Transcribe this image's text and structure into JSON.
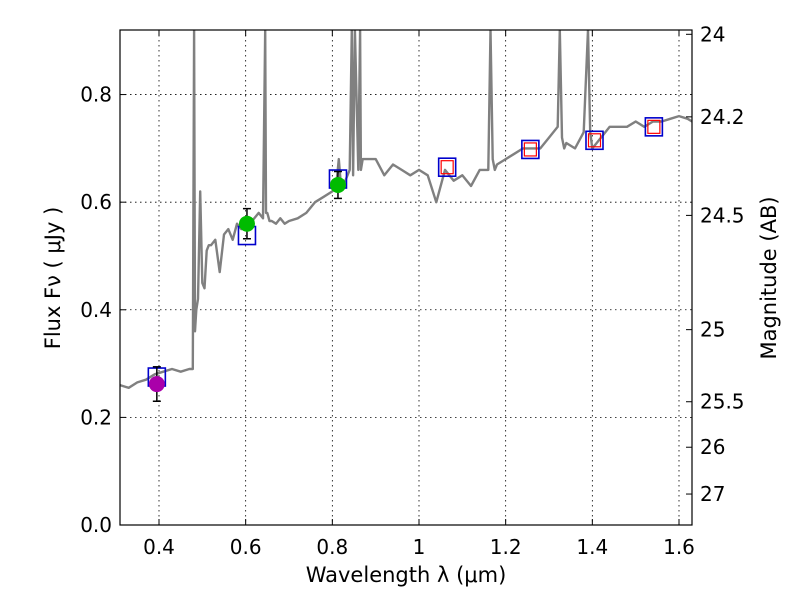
{
  "chart_data": {
    "type": "line",
    "xlabel": "Wavelength  λ (μm)",
    "ylabel": "Flux  Fν  ( μJy )",
    "y2label": "Magnitude (AB)",
    "xlim": [
      0.31,
      1.63
    ],
    "ylim": [
      0.0,
      0.92
    ],
    "x_ticks": [
      0.4,
      0.6,
      0.8,
      1.0,
      1.2,
      1.4,
      1.6
    ],
    "x_tick_labels": [
      "0.4",
      "0.6",
      "0.8",
      "1",
      "1.2",
      "1.4",
      "1.6"
    ],
    "y_ticks": [
      0.0,
      0.2,
      0.4,
      0.6,
      0.8
    ],
    "y_tick_labels": [
      "0.0",
      "0.2",
      "0.4",
      "0.6",
      "0.8"
    ],
    "y2_ticks": [
      {
        "label": "24",
        "mag": 24.0
      },
      {
        "label": "24.2",
        "mag": 24.2
      },
      {
        "label": "24.5",
        "mag": 24.5
      },
      {
        "label": "25",
        "mag": 25.0
      },
      {
        "label": "25.5",
        "mag": 25.5
      },
      {
        "label": "26",
        "mag": 26.0
      },
      {
        "label": "27",
        "mag": 27.0
      }
    ],
    "grid": true,
    "colors": {
      "spectrum": "#808080",
      "model_box": "#0000cc",
      "model_box_inner": "#ff0000",
      "point_violet": "#aa00aa",
      "point_green": "#00bb00",
      "errorbar": "#000000"
    },
    "series": [
      {
        "kind": "spectrum",
        "x": [
          0.31,
          0.33,
          0.35,
          0.37,
          0.39,
          0.41,
          0.43,
          0.45,
          0.47,
          0.478,
          0.481,
          0.483,
          0.486,
          0.49,
          0.495,
          0.5,
          0.505,
          0.51,
          0.515,
          0.52,
          0.53,
          0.54,
          0.55,
          0.56,
          0.57,
          0.58,
          0.59,
          0.6,
          0.61,
          0.62,
          0.63,
          0.64,
          0.645,
          0.647,
          0.65,
          0.655,
          0.66,
          0.67,
          0.68,
          0.69,
          0.7,
          0.72,
          0.74,
          0.76,
          0.78,
          0.8,
          0.81,
          0.815,
          0.82,
          0.83,
          0.84,
          0.845,
          0.848,
          0.852,
          0.86,
          0.864,
          0.866,
          0.87,
          0.88,
          0.9,
          0.92,
          0.94,
          0.96,
          0.98,
          1.0,
          1.02,
          1.04,
          1.06,
          1.08,
          1.1,
          1.12,
          1.14,
          1.16,
          1.165,
          1.17,
          1.175,
          1.18,
          1.2,
          1.22,
          1.24,
          1.26,
          1.28,
          1.3,
          1.32,
          1.325,
          1.33,
          1.335,
          1.34,
          1.36,
          1.38,
          1.39,
          1.395,
          1.4,
          1.41,
          1.42,
          1.44,
          1.46,
          1.48,
          1.5,
          1.52,
          1.54,
          1.56,
          1.58,
          1.6,
          1.62,
          1.63
        ],
        "y": [
          0.26,
          0.255,
          0.265,
          0.27,
          0.28,
          0.285,
          0.29,
          0.285,
          0.29,
          0.29,
          0.92,
          0.36,
          0.4,
          0.42,
          0.62,
          0.45,
          0.44,
          0.51,
          0.52,
          0.52,
          0.53,
          0.47,
          0.54,
          0.55,
          0.53,
          0.56,
          0.55,
          0.57,
          0.56,
          0.57,
          0.58,
          0.57,
          0.92,
          0.58,
          0.58,
          0.565,
          0.565,
          0.56,
          0.57,
          0.56,
          0.565,
          0.57,
          0.58,
          0.6,
          0.61,
          0.62,
          0.64,
          0.68,
          0.63,
          0.64,
          0.66,
          0.92,
          0.65,
          0.92,
          0.66,
          0.92,
          0.66,
          0.68,
          0.68,
          0.68,
          0.65,
          0.67,
          0.66,
          0.65,
          0.66,
          0.65,
          0.6,
          0.66,
          0.64,
          0.65,
          0.63,
          0.66,
          0.66,
          0.92,
          0.68,
          0.66,
          0.67,
          0.68,
          0.69,
          0.7,
          0.7,
          0.7,
          0.72,
          0.74,
          0.92,
          0.72,
          0.7,
          0.71,
          0.7,
          0.73,
          0.92,
          0.73,
          0.7,
          0.71,
          0.72,
          0.74,
          0.74,
          0.74,
          0.75,
          0.74,
          0.75,
          0.75,
          0.755,
          0.76,
          0.755,
          0.75
        ]
      },
      {
        "kind": "model_boxes",
        "x": [
          0.395,
          0.603,
          0.813,
          1.065,
          1.257,
          1.405,
          1.542
        ],
        "y": [
          0.275,
          0.538,
          0.643,
          0.665,
          0.698,
          0.715,
          0.74
        ],
        "inner_red": [
          false,
          false,
          false,
          true,
          true,
          true,
          true
        ]
      },
      {
        "kind": "photometry",
        "points": [
          {
            "x": 0.395,
            "y": 0.262,
            "err": 0.032,
            "color": "#aa00aa"
          },
          {
            "x": 0.603,
            "y": 0.56,
            "err": 0.028,
            "color": "#00bb00"
          },
          {
            "x": 0.813,
            "y": 0.632,
            "err": 0.025,
            "color": "#00bb00"
          }
        ]
      }
    ]
  }
}
